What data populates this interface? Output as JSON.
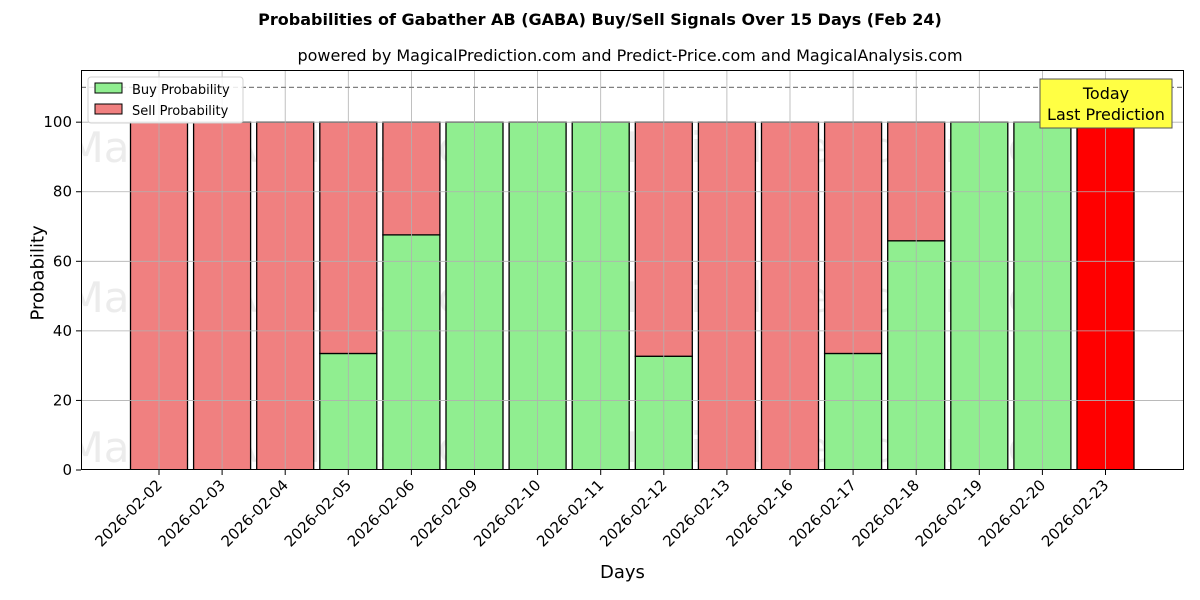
{
  "title": "Probabilities of Gabather AB (GABA) Buy/Sell Signals Over 15 Days (Feb 24)",
  "subtitle": "powered by MagicalPrediction.com and Predict-Price.com and MagicalAnalysis.com",
  "watermarks": [
    "MagicalAnalysis.com",
    "MagicalPrediction.com"
  ],
  "annotation": {
    "line1": "Today",
    "line2": "Last Prediction",
    "bg": "#ffff44"
  },
  "colors": {
    "buy": "#90ee90",
    "sell": "#f08080",
    "today": "#ff0000"
  },
  "chart_data": {
    "type": "bar",
    "stacked": true,
    "title": "Probabilities of Gabather AB (GABA) Buy/Sell Signals Over 15 Days (Feb 24)",
    "subtitle": "powered by MagicalPrediction.com and Predict-Price.com and MagicalAnalysis.com",
    "xlabel": "Days",
    "ylabel": "Probability",
    "ylim": [
      0,
      115
    ],
    "yticks": [
      0,
      20,
      40,
      60,
      80,
      100
    ],
    "grid": true,
    "legend_position": "upper left",
    "reference_line": {
      "y": 110,
      "style": "dashed"
    },
    "categories": [
      "2026-02-02",
      "2026-02-03",
      "2026-02-04",
      "2026-02-05",
      "2026-02-06",
      "2026-02-09",
      "2026-02-10",
      "2026-02-11",
      "2026-02-12",
      "2026-02-13",
      "2026-02-16",
      "2026-02-17",
      "2026-02-18",
      "2026-02-19",
      "2026-02-20",
      "2026-02-23"
    ],
    "series": [
      {
        "name": "Buy Probability",
        "values": [
          0,
          0,
          0,
          33.5,
          67.6,
          100,
          100,
          100,
          32.7,
          0,
          0,
          33.5,
          65.9,
          100,
          100,
          0
        ]
      },
      {
        "name": "Sell Probability",
        "values": [
          100,
          100,
          100,
          66.5,
          32.4,
          0,
          0,
          0,
          67.3,
          100,
          100,
          66.5,
          34.1,
          0,
          0,
          100
        ]
      }
    ],
    "highlight": {
      "category": "2026-02-23",
      "label": "Today\nLast Prediction",
      "color": "#ff0000"
    }
  }
}
